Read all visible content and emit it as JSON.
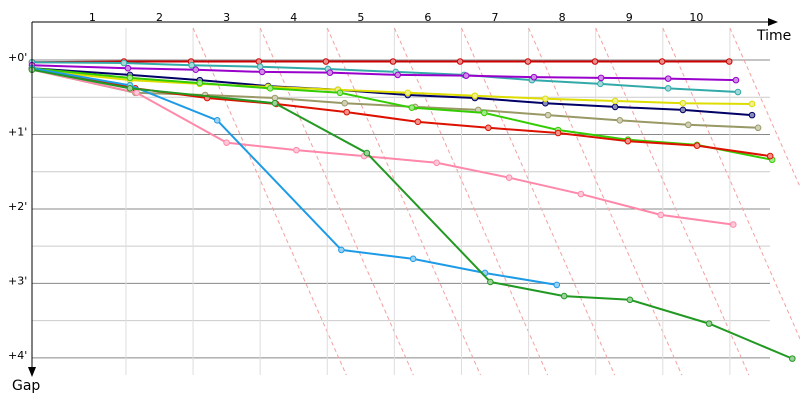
{
  "chart_data": {
    "type": "line",
    "x_label": "Time",
    "y_label": "Gap",
    "xlim": [
      0.1,
      11.5
    ],
    "ylim": [
      -0.43,
      4.23
    ],
    "xticks": [
      1,
      2,
      3,
      4,
      5,
      6,
      7,
      8,
      9,
      10
    ],
    "yticks": [
      {
        "value": 0,
        "label": "+0'"
      },
      {
        "value": 1,
        "label": "+1'"
      },
      {
        "value": 2,
        "label": "+2'"
      },
      {
        "value": 3,
        "label": "+3'"
      },
      {
        "value": 4,
        "label": "+4'"
      }
    ],
    "minor_yticks": [
      0.5,
      1.5,
      2.5,
      3.5
    ],
    "grid": true,
    "series": [
      {
        "color": "#cc0000",
        "x": [
          0.1,
          1.47,
          2.47,
          3.48,
          4.48,
          5.48,
          6.48,
          7.49,
          8.49,
          9.49,
          10.49
        ],
        "values": [
          0.03,
          0.02,
          0.02,
          0.02,
          0.02,
          0.02,
          0.02,
          0.02,
          0.02,
          0.02,
          0.02
        ]
      },
      {
        "color": "#33aaaa",
        "x": [
          0.1,
          1.47,
          2.48,
          3.5,
          4.51,
          5.52,
          6.54,
          7.55,
          8.57,
          9.58,
          10.62
        ],
        "values": [
          0.03,
          0.04,
          0.07,
          0.09,
          0.12,
          0.16,
          0.2,
          0.27,
          0.32,
          0.38,
          0.43
        ]
      },
      {
        "color": "#9900cc",
        "x": [
          0.1,
          1.53,
          2.54,
          3.53,
          4.54,
          5.55,
          6.57,
          7.58,
          8.58,
          9.58,
          10.59
        ],
        "values": [
          0.07,
          0.11,
          0.13,
          0.16,
          0.17,
          0.2,
          0.21,
          0.23,
          0.24,
          0.25,
          0.27
        ]
      },
      {
        "color": "#000066",
        "x": [
          0.1,
          1.56,
          2.6,
          3.62,
          4.66,
          5.7,
          6.7,
          7.75,
          8.79,
          9.8,
          10.83
        ],
        "values": [
          0.11,
          0.2,
          0.27,
          0.35,
          0.4,
          0.47,
          0.51,
          0.58,
          0.63,
          0.67,
          0.74
        ]
      },
      {
        "color": "#dddd00",
        "x": [
          0.1,
          1.56,
          2.6,
          3.62,
          4.66,
          5.7,
          6.7,
          7.75,
          8.79,
          9.8,
          10.83
        ],
        "values": [
          0.13,
          0.27,
          0.32,
          0.36,
          0.4,
          0.44,
          0.48,
          0.52,
          0.55,
          0.58,
          0.59
        ]
      },
      {
        "color": "#999966",
        "x": [
          0.1,
          1.64,
          2.68,
          3.72,
          4.76,
          5.81,
          6.75,
          7.79,
          8.86,
          9.88,
          10.92
        ],
        "values": [
          0.13,
          0.44,
          0.47,
          0.51,
          0.58,
          0.63,
          0.67,
          0.74,
          0.81,
          0.87,
          0.91
        ]
      },
      {
        "color": "#33cc00",
        "x": [
          0.1,
          1.56,
          2.6,
          3.65,
          4.69,
          5.76,
          6.84,
          7.94,
          8.98,
          10.01,
          11.13
        ],
        "values": [
          0.11,
          0.24,
          0.31,
          0.38,
          0.44,
          0.64,
          0.71,
          0.94,
          1.07,
          1.14,
          1.34
        ]
      },
      {
        "color": "#dd1100",
        "x": [
          0.1,
          1.64,
          2.71,
          3.74,
          4.79,
          5.85,
          6.9,
          7.94,
          8.98,
          10.01,
          11.1
        ],
        "values": [
          0.11,
          0.38,
          0.51,
          0.59,
          0.7,
          0.83,
          0.91,
          0.98,
          1.09,
          1.15,
          1.29
        ]
      },
      {
        "color": "#ff88aa",
        "x": [
          0.1,
          1.66,
          3.0,
          4.04,
          5.05,
          6.13,
          7.21,
          8.28,
          9.47,
          10.55
        ],
        "values": [
          0.13,
          0.44,
          1.11,
          1.21,
          1.29,
          1.38,
          1.58,
          1.8,
          2.08,
          2.21
        ]
      },
      {
        "color": "#1e9be6",
        "x": [
          0.1,
          1.56,
          2.86,
          4.71,
          5.78,
          6.85,
          7.92
        ],
        "values": [
          0.11,
          0.34,
          0.81,
          2.55,
          2.67,
          2.86,
          3.02
        ]
      },
      {
        "color": "#229922",
        "x": [
          0.1,
          1.56,
          3.72,
          5.09,
          6.93,
          8.03,
          9.01,
          10.19,
          11.43
        ],
        "values": [
          0.13,
          0.38,
          0.58,
          1.25,
          2.98,
          3.17,
          3.22,
          3.54,
          4.01
        ]
      }
    ]
  }
}
